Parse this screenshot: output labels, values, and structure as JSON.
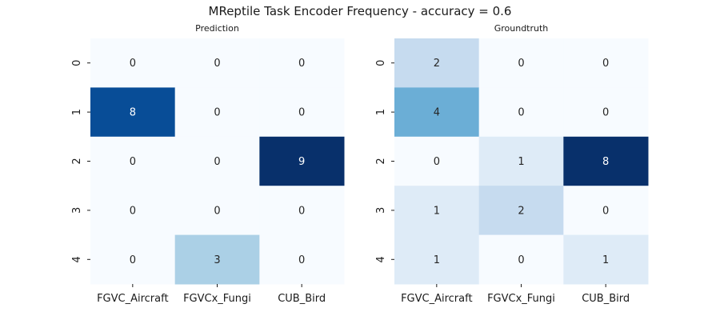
{
  "figure": {
    "title": "MReptile Task Encoder Frequency - accuracy = 0.6"
  },
  "colormap": {
    "name": "Blues",
    "low_color": "#f7fbff",
    "high_color": "#08306b",
    "dark_text": "#262626",
    "light_text": "#ffffff"
  },
  "chart_data": [
    {
      "type": "heatmap",
      "title": "Prediction",
      "xlabel": "",
      "ylabel": "",
      "x_categories": [
        "FGVC_Aircraft",
        "FGVCx_Fungi",
        "CUB_Bird"
      ],
      "y_categories": [
        "0",
        "1",
        "2",
        "3",
        "4"
      ],
      "values": [
        [
          0,
          0,
          0
        ],
        [
          8,
          0,
          0
        ],
        [
          0,
          0,
          9
        ],
        [
          0,
          0,
          0
        ],
        [
          0,
          3,
          0
        ]
      ],
      "vmin": 0,
      "vmax": 9,
      "annotated": true,
      "colorbar": false
    },
    {
      "type": "heatmap",
      "title": "Groundtruth",
      "xlabel": "",
      "ylabel": "",
      "x_categories": [
        "FGVC_Aircraft",
        "FGVCx_Fungi",
        "CUB_Bird"
      ],
      "y_categories": [
        "0",
        "1",
        "2",
        "3",
        "4"
      ],
      "values": [
        [
          2,
          0,
          0
        ],
        [
          4,
          0,
          0
        ],
        [
          0,
          1,
          8
        ],
        [
          1,
          2,
          0
        ],
        [
          1,
          0,
          1
        ]
      ],
      "vmin": 0,
      "vmax": 8,
      "annotated": true,
      "colorbar": false
    }
  ]
}
